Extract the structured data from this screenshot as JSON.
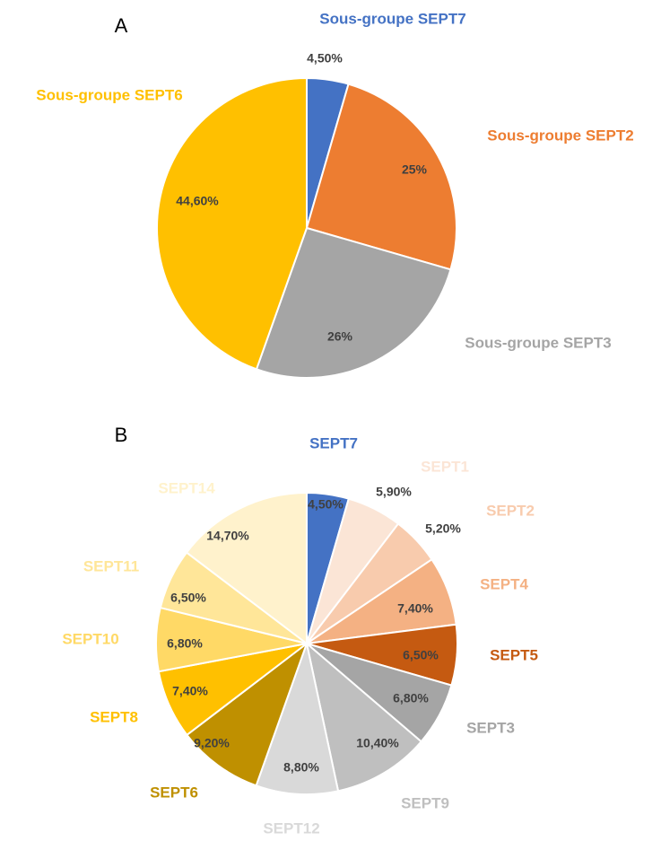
{
  "chart_data": [
    {
      "type": "pie",
      "title": "A",
      "categories": [
        "Sous-groupe SEPT7",
        "Sous-groupe SEPT2",
        "Sous-groupe SEPT3",
        "Sous-groupe SEPT6"
      ],
      "values": [
        4.5,
        25,
        26,
        44.6
      ],
      "value_labels": [
        "4,50%",
        "25%",
        "26%",
        "44,60%"
      ],
      "colors": [
        "#4472c4",
        "#ed7d31",
        "#a5a5a5",
        "#ffc000"
      ]
    },
    {
      "type": "pie",
      "title": "B",
      "categories": [
        "SEPT7",
        "SEPT1",
        "SEPT2",
        "SEPT4",
        "SEPT5",
        "SEPT3",
        "SEPT9",
        "SEPT12",
        "SEPT6",
        "SEPT8",
        "SEPT10",
        "SEPT11",
        "SEPT14"
      ],
      "values": [
        4.5,
        5.9,
        5.2,
        7.4,
        6.5,
        6.8,
        10.4,
        8.8,
        9.2,
        7.4,
        6.8,
        6.5,
        14.7
      ],
      "value_labels": [
        "4,50%",
        "5,90%",
        "5,20%",
        "7,40%",
        "6,50%",
        "6,80%",
        "10,40%",
        "8,80%",
        "9,20%",
        "7,40%",
        "6,80%",
        "6,50%",
        "14,70%"
      ],
      "colors": [
        "#4472c4",
        "#fbe5d6",
        "#f8cbad",
        "#f4b183",
        "#c55a11",
        "#a5a5a5",
        "#bfbfbf",
        "#d9d9d9",
        "#bf9000",
        "#ffc000",
        "#ffd966",
        "#ffe699",
        "#fff2cc"
      ]
    }
  ]
}
